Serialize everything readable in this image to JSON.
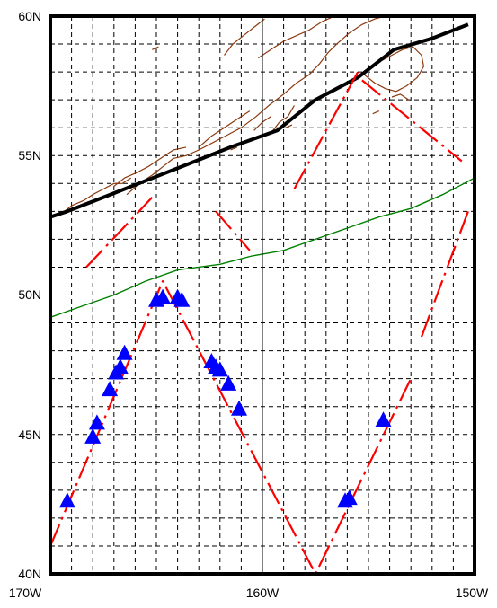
{
  "map": {
    "lon_range": [
      -170,
      -150
    ],
    "lat_range": [
      40,
      60
    ],
    "grid_step_deg": 1,
    "gridline_style": "dashed",
    "lat_labels": [
      "60N",
      "55N",
      "50N",
      "45N",
      "40N"
    ],
    "lon_labels": [
      "170W",
      "160W",
      "150W"
    ],
    "colors": {
      "coastline": "#8b3a10",
      "track": "#ff0000",
      "shelf_break": "#000000",
      "front": "#008000",
      "stations": "#0000ff",
      "grid": "#000000"
    },
    "shelf_break_line": [
      [
        -170,
        52.8
      ],
      [
        -169.2,
        53.0
      ],
      [
        -167.5,
        53.5
      ],
      [
        -165.5,
        54.1
      ],
      [
        -163.5,
        54.7
      ],
      [
        -161.5,
        55.3
      ],
      [
        -159.3,
        55.9
      ],
      [
        -157.5,
        57.0
      ],
      [
        -155.5,
        57.8
      ],
      [
        -153.8,
        58.8
      ],
      [
        -152,
        59.2
      ],
      [
        -150.3,
        59.7
      ]
    ],
    "front_line": [
      [
        -170,
        49.2
      ],
      [
        -168.5,
        49.6
      ],
      [
        -167,
        50.0
      ],
      [
        -165.5,
        50.5
      ],
      [
        -164,
        50.9
      ],
      [
        -162,
        51.1
      ],
      [
        -160.5,
        51.4
      ],
      [
        -159,
        51.6
      ],
      [
        -157.5,
        52.0
      ],
      [
        -156,
        52.4
      ],
      [
        -154.5,
        52.8
      ],
      [
        -153,
        53.1
      ],
      [
        -151.5,
        53.6
      ],
      [
        -150,
        54.2
      ]
    ],
    "red_track_segments": [
      [
        [
          -170,
          41.0
        ],
        [
          -164.7,
          50.5
        ],
        [
          -157.5,
          40.0
        ],
        [
          -153.0,
          47.0
        ]
      ],
      [
        [
          -152.5,
          48.5
        ],
        [
          -150.3,
          53.0
        ]
      ],
      [
        [
          -168.3,
          51.0
        ],
        [
          -165.2,
          53.5
        ]
      ],
      [
        [
          -162.2,
          53.0
        ],
        [
          -160.6,
          51.6
        ]
      ],
      [
        [
          -158.5,
          53.8
        ],
        [
          -155.5,
          58.0
        ]
      ],
      [
        [
          -155.3,
          57.7
        ],
        [
          -150.6,
          54.8
        ]
      ]
    ],
    "stations": [
      [
        -169.2,
        42.6
      ],
      [
        -168.0,
        44.9
      ],
      [
        -167.8,
        45.4
      ],
      [
        -167.2,
        46.6
      ],
      [
        -166.9,
        47.2
      ],
      [
        -166.7,
        47.4
      ],
      [
        -166.5,
        47.9
      ],
      [
        -165.0,
        49.8
      ],
      [
        -164.7,
        49.9
      ],
      [
        -164.0,
        49.9
      ],
      [
        -163.8,
        49.8
      ],
      [
        -162.4,
        47.6
      ],
      [
        -162.2,
        47.4
      ],
      [
        -162.0,
        47.3
      ],
      [
        -161.6,
        46.8
      ],
      [
        -161.1,
        45.9
      ],
      [
        -156.1,
        42.6
      ],
      [
        -155.9,
        42.7
      ],
      [
        -154.3,
        45.5
      ]
    ],
    "coastline": [
      [
        [
          -169.5,
          52.9
        ],
        [
          -169.0,
          53.2
        ],
        [
          -168.4,
          53.4
        ],
        [
          -168.0,
          53.6
        ],
        [
          -167.5,
          53.8
        ],
        [
          -167.0,
          54.0
        ],
        [
          -166.6,
          54.0
        ],
        [
          -166.2,
          54.2
        ]
      ],
      [
        [
          -166.4,
          53.6
        ],
        [
          -165.8,
          54.0
        ],
        [
          -165.2,
          54.3
        ],
        [
          -164.7,
          54.6
        ],
        [
          -164.2,
          54.9
        ],
        [
          -163.6,
          55.0
        ],
        [
          -163.0,
          55.2
        ],
        [
          -162.5,
          55.4
        ],
        [
          -162.0,
          55.6
        ],
        [
          -161.5,
          55.8
        ],
        [
          -161.0,
          56.0
        ],
        [
          -160.3,
          56.4
        ],
        [
          -159.7,
          56.8
        ],
        [
          -159.0,
          57.2
        ],
        [
          -158.4,
          57.6
        ],
        [
          -157.8,
          57.9
        ],
        [
          -157.3,
          58.3
        ],
        [
          -156.9,
          58.7
        ],
        [
          -156.5,
          59.0
        ],
        [
          -155.9,
          59.4
        ],
        [
          -155.3,
          59.7
        ],
        [
          -154.7,
          59.9
        ],
        [
          -154.2,
          60.0
        ]
      ],
      [
        [
          -167.0,
          53.9
        ],
        [
          -166.5,
          54.2
        ],
        [
          -165.9,
          54.4
        ],
        [
          -165.4,
          54.6
        ],
        [
          -164.8,
          54.9
        ],
        [
          -164.2,
          55.2
        ],
        [
          -163.6,
          55.3
        ]
      ],
      [
        [
          -163.0,
          55.3
        ],
        [
          -162.4,
          55.7
        ],
        [
          -161.8,
          56.0
        ],
        [
          -161.2,
          56.3
        ],
        [
          -160.6,
          56.6
        ]
      ],
      [
        [
          -160.4,
          55.9
        ],
        [
          -160.0,
          56.2
        ],
        [
          -159.6,
          56.4
        ]
      ],
      [
        [
          -159.5,
          55.9
        ],
        [
          -159.2,
          56.2
        ],
        [
          -158.8,
          56.4
        ],
        [
          -158.5,
          56.8
        ]
      ],
      [
        [
          -160.2,
          58.5
        ],
        [
          -159.6,
          58.8
        ],
        [
          -159.0,
          59.1
        ],
        [
          -158.4,
          59.3
        ],
        [
          -157.8,
          59.5
        ],
        [
          -157.2,
          59.8
        ],
        [
          -156.6,
          60.0
        ]
      ],
      [
        [
          -161.8,
          58.6
        ],
        [
          -161.4,
          59.0
        ],
        [
          -160.9,
          59.3
        ],
        [
          -160.4,
          59.6
        ],
        [
          -159.9,
          59.9
        ]
      ],
      [
        [
          -155.2,
          57.9
        ],
        [
          -154.7,
          57.6
        ],
        [
          -154.2,
          57.4
        ],
        [
          -153.7,
          57.3
        ],
        [
          -153.2,
          57.5
        ],
        [
          -152.7,
          57.8
        ],
        [
          -152.4,
          58.2
        ],
        [
          -152.5,
          58.6
        ],
        [
          -152.9,
          58.9
        ],
        [
          -153.4,
          58.8
        ],
        [
          -153.9,
          58.6
        ],
        [
          -154.4,
          58.4
        ],
        [
          -154.9,
          58.2
        ],
        [
          -155.2,
          57.9
        ]
      ],
      [
        [
          -153.9,
          57.1
        ],
        [
          -153.5,
          57.2
        ],
        [
          -153.1,
          57.0
        ]
      ],
      [
        [
          -154.8,
          56.5
        ],
        [
          -154.5,
          56.6
        ]
      ],
      [
        [
          -158.9,
          56.0
        ],
        [
          -158.6,
          56.1
        ]
      ],
      [
        [
          -161.5,
          55.2
        ],
        [
          -161.2,
          55.3
        ]
      ],
      [
        [
          -165.2,
          58.8
        ],
        [
          -164.9,
          58.9
        ]
      ]
    ]
  }
}
